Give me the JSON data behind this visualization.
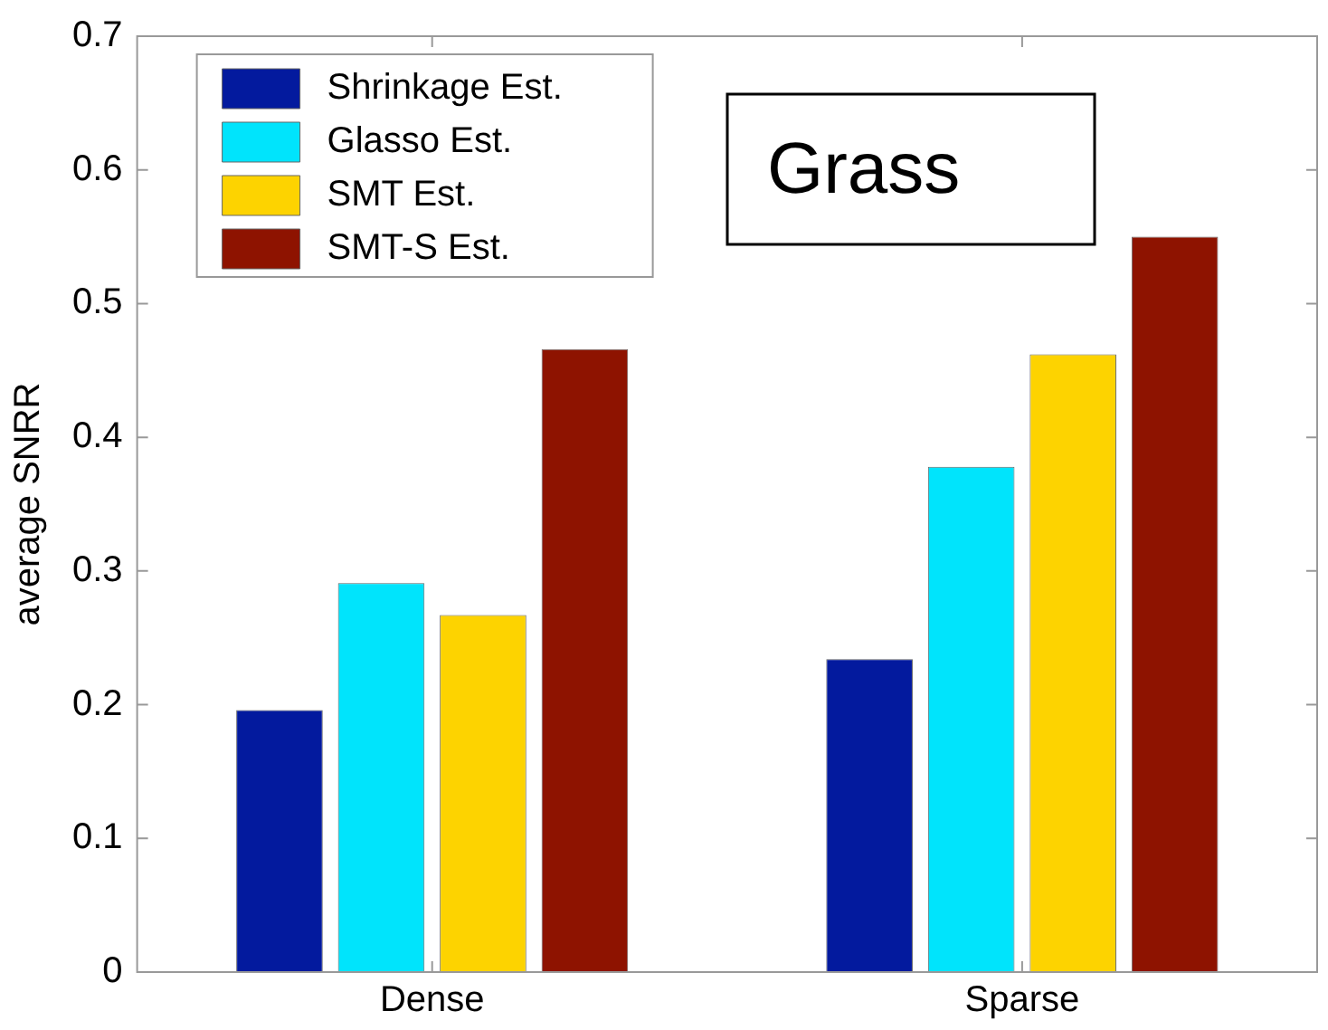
{
  "chart_data": {
    "type": "bar",
    "ylabel": "average SNRR",
    "categories": [
      "Dense",
      "Sparse"
    ],
    "series": [
      {
        "name": "Shrinkage Est.",
        "color": "#031a9e",
        "values": [
          0.196,
          0.234
        ]
      },
      {
        "name": "Glasso Est.",
        "color": "#00e4fc",
        "values": [
          0.291,
          0.378
        ]
      },
      {
        "name": "SMT Est.",
        "color": "#fdd300",
        "values": [
          0.267,
          0.462
        ]
      },
      {
        "name": "SMT-S Est.",
        "color": "#8e1300",
        "values": [
          0.466,
          0.55
        ]
      }
    ],
    "ylim": [
      0,
      0.7
    ],
    "yticks": [
      0,
      0.1,
      0.2,
      0.3,
      0.4,
      0.5,
      0.6,
      0.7
    ],
    "grid": false,
    "legend": "top left",
    "annotations": [
      "Grass"
    ]
  }
}
